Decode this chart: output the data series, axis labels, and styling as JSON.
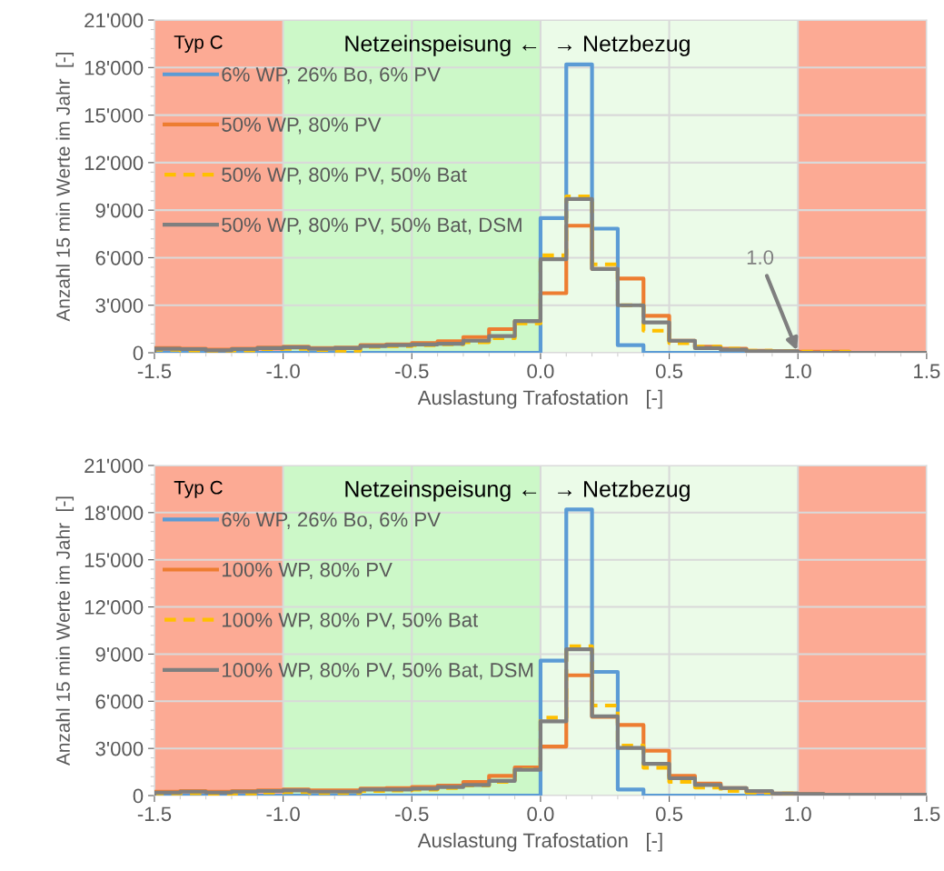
{
  "chart_data": [
    {
      "type": "histogram",
      "title": null,
      "xlabel": "Auslastung Trafostation   [-]",
      "ylabel": "Anzahl 15 min Werte im Jahr  [-]",
      "bins": [
        -1.5,
        -1.4,
        -1.3,
        -1.2,
        -1.1,
        -1.0,
        -0.9,
        -0.8,
        -0.7,
        -0.6,
        -0.5,
        -0.4,
        -0.3,
        -0.2,
        -0.1,
        0.0,
        0.1,
        0.2,
        0.3,
        0.4,
        0.5,
        0.6,
        0.7,
        0.8,
        0.9,
        1.0,
        1.1,
        1.2,
        1.3,
        1.4,
        1.5
      ],
      "series": [
        {
          "name": "6% WP, 26% Bo, 6% PV",
          "color": "#5b9bd5",
          "line_style": "solid",
          "values": [
            0,
            0,
            0,
            0,
            0,
            0,
            0,
            0,
            0,
            0,
            0,
            0,
            0,
            0,
            0,
            8500,
            18200,
            7830,
            480,
            0,
            0,
            0,
            0,
            0,
            0,
            0,
            0,
            0,
            0,
            0
          ]
        },
        {
          "name": "50% WP, 80% PV",
          "color": "#ed7d31",
          "line_style": "solid",
          "values": [
            290,
            250,
            190,
            250,
            320,
            380,
            290,
            320,
            480,
            530,
            610,
            730,
            990,
            1490,
            2000,
            3760,
            8020,
            5290,
            4680,
            2330,
            760,
            380,
            250,
            130,
            100,
            60,
            60,
            0,
            0,
            0
          ]
        },
        {
          "name": "50% WP, 80% PV, 50% Bat",
          "color": "#ffc000",
          "line_style": "dashed",
          "values": [
            190,
            150,
            100,
            150,
            230,
            250,
            170,
            130,
            380,
            420,
            480,
            530,
            670,
            920,
            1850,
            6150,
            9870,
            5580,
            3000,
            1390,
            610,
            380,
            250,
            130,
            100,
            60,
            60,
            0,
            0,
            0
          ]
        },
        {
          "name": "50% WP, 80% PV, 50% Bat, DSM",
          "color": "#7f7f7f",
          "line_style": "solid",
          "values": [
            250,
            230,
            150,
            230,
            290,
            340,
            250,
            290,
            420,
            480,
            520,
            570,
            760,
            1050,
            2000,
            5900,
            9700,
            5290,
            3000,
            1910,
            760,
            290,
            190,
            100,
            100,
            0,
            0,
            0,
            0,
            0
          ]
        }
      ],
      "xlim": [
        -1.5,
        1.5
      ],
      "xticks": [
        {
          "value": -1.5,
          "label": "-1.5"
        },
        {
          "value": -1.0,
          "label": "-1.0"
        },
        {
          "value": -0.5,
          "label": "-0.5"
        },
        {
          "value": 0.0,
          "label": "0.0"
        },
        {
          "value": 0.5,
          "label": "0.5"
        },
        {
          "value": 1.0,
          "label": "1.0"
        },
        {
          "value": 1.5,
          "label": "1.5"
        }
      ],
      "ylim": [
        0,
        21000
      ],
      "yticks": [
        0,
        {
          "value": 3000,
          "label": "3'000"
        },
        {
          "value": 6000,
          "label": "6'000"
        },
        {
          "value": 9000,
          "label": "9'000"
        },
        {
          "value": 12000,
          "label": "12'000"
        },
        {
          "value": 15000,
          "label": "15'000"
        },
        {
          "value": 18000,
          "label": "18'000"
        },
        {
          "value": 21000,
          "label": "21'000"
        }
      ],
      "bands": [
        {
          "axis": "x",
          "from": -1.5,
          "to": -1.0,
          "color": "#fcaa94"
        },
        {
          "axis": "x",
          "from": -1.0,
          "to": 0.0,
          "color": "#ccf8c8"
        },
        {
          "axis": "x",
          "from": 0.0,
          "to": 1.0,
          "color": "#ebfbe8"
        },
        {
          "axis": "x",
          "from": 1.0,
          "to": 1.5,
          "color": "#fcaa94"
        }
      ],
      "annotations": [
        "Typ C",
        "Netzeinspeisung ←  → Netzbezug",
        {
          "text": "1.0",
          "x": 1.0,
          "y": 0
        }
      ],
      "grid": true,
      "legend": "top left"
    },
    {
      "type": "histogram",
      "title": null,
      "xlabel": "Auslastung Trafostation   [-]",
      "ylabel": "Anzahl 15 min Werte im Jahr  [-]",
      "bins": [
        -1.5,
        -1.4,
        -1.3,
        -1.2,
        -1.1,
        -1.0,
        -0.9,
        -0.8,
        -0.7,
        -0.6,
        -0.5,
        -0.4,
        -0.3,
        -0.2,
        -0.1,
        0.0,
        0.1,
        0.2,
        0.3,
        0.4,
        0.5,
        0.6,
        0.7,
        0.8,
        0.9,
        1.0,
        1.1,
        1.2,
        1.3,
        1.4,
        1.5
      ],
      "series": [
        {
          "name": "6% WP, 26% Bo, 6% PV",
          "color": "#5b9bd5",
          "line_style": "solid",
          "values": [
            0,
            0,
            0,
            0,
            0,
            0,
            0,
            0,
            0,
            0,
            0,
            0,
            0,
            0,
            0,
            8580,
            18200,
            7870,
            390,
            0,
            0,
            0,
            0,
            0,
            0,
            0,
            0,
            0,
            0,
            0
          ]
        },
        {
          "name": "100% WP, 80% PV",
          "color": "#ed7d31",
          "line_style": "solid",
          "values": [
            250,
            290,
            250,
            290,
            330,
            390,
            330,
            330,
            440,
            480,
            540,
            640,
            870,
            1250,
            1790,
            3120,
            7650,
            5010,
            4490,
            2850,
            1250,
            770,
            480,
            250,
            130,
            100,
            60,
            60,
            60,
            60
          ]
        },
        {
          "name": "100% WP, 80% PV, 50% Bat",
          "color": "#ffc000",
          "line_style": "dashed",
          "values": [
            130,
            150,
            100,
            130,
            190,
            230,
            170,
            170,
            290,
            330,
            390,
            480,
            640,
            870,
            1680,
            4950,
            9500,
            5730,
            3180,
            1770,
            870,
            520,
            290,
            190,
            130,
            60,
            60,
            60,
            60,
            60
          ]
        },
        {
          "name": "100% WP, 80% PV, 50% Bat, DSM",
          "color": "#7f7f7f",
          "line_style": "solid",
          "values": [
            190,
            250,
            190,
            250,
            290,
            330,
            250,
            250,
            390,
            390,
            440,
            540,
            670,
            930,
            1640,
            4720,
            9310,
            5050,
            3030,
            2020,
            1100,
            670,
            480,
            290,
            130,
            100,
            60,
            60,
            60,
            60
          ]
        }
      ],
      "xlim": [
        -1.5,
        1.5
      ],
      "xticks": [
        {
          "value": -1.5,
          "label": "-1.5"
        },
        {
          "value": -1.0,
          "label": "-1.0"
        },
        {
          "value": -0.5,
          "label": "-0.5"
        },
        {
          "value": 0.0,
          "label": "0.0"
        },
        {
          "value": 0.5,
          "label": "0.5"
        },
        {
          "value": 1.0,
          "label": "1.0"
        },
        {
          "value": 1.5,
          "label": "1.5"
        }
      ],
      "ylim": [
        0,
        21000
      ],
      "yticks": [
        0,
        {
          "value": 3000,
          "label": "3'000"
        },
        {
          "value": 6000,
          "label": "6'000"
        },
        {
          "value": 9000,
          "label": "9'000"
        },
        {
          "value": 12000,
          "label": "12'000"
        },
        {
          "value": 15000,
          "label": "15'000"
        },
        {
          "value": 18000,
          "label": "18'000"
        },
        {
          "value": 21000,
          "label": "21'000"
        }
      ],
      "bands": [
        {
          "axis": "x",
          "from": -1.5,
          "to": -1.0,
          "color": "#fcaa94"
        },
        {
          "axis": "x",
          "from": -1.0,
          "to": 0.0,
          "color": "#ccf8c8"
        },
        {
          "axis": "x",
          "from": 0.0,
          "to": 1.0,
          "color": "#ebfbe8"
        },
        {
          "axis": "x",
          "from": 1.0,
          "to": 1.5,
          "color": "#fcaa94"
        }
      ],
      "annotations": [
        "Typ C",
        "Netzeinspeisung ←  → Netzbezug"
      ],
      "grid": true,
      "legend": "top left"
    }
  ]
}
